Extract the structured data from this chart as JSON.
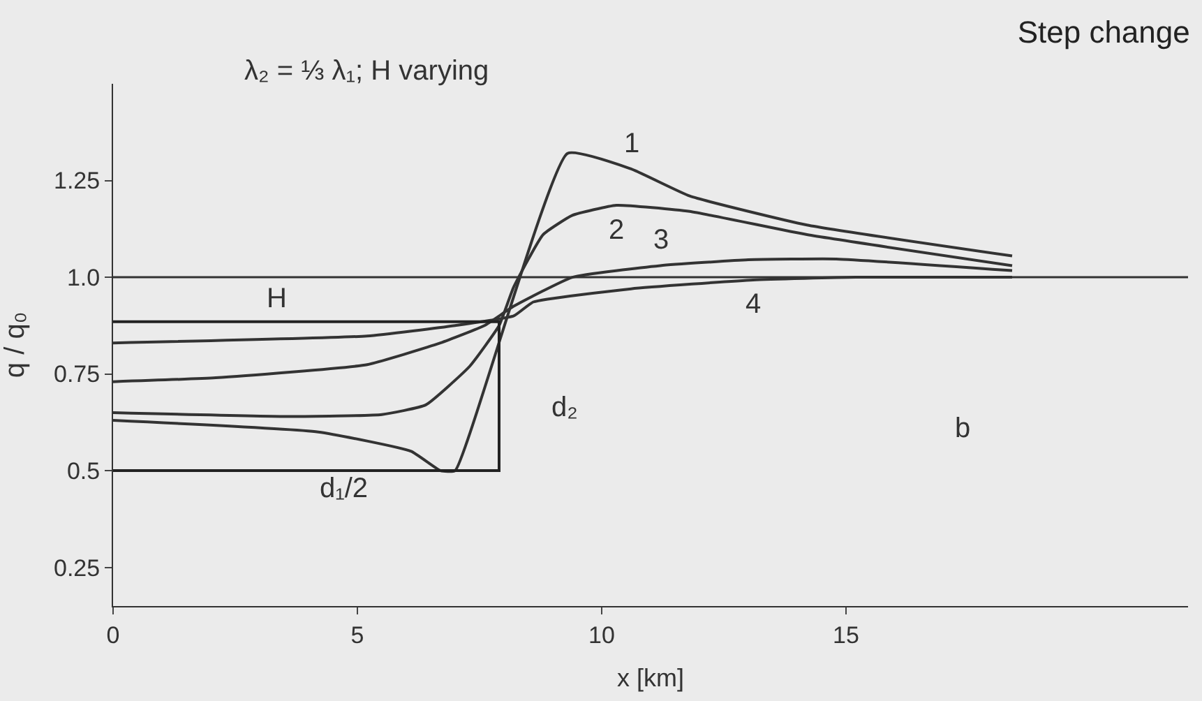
{
  "chart_data": {
    "type": "line",
    "title": "Step change",
    "subtitle": "λ₂ = ⅓ λ₁; H varying",
    "xlabel": "x [km]",
    "ylabel": "q / q₀",
    "xlim": [
      0,
      22
    ],
    "xticks": [
      0,
      5,
      10,
      15
    ],
    "ylim": [
      0.15,
      1.5
    ],
    "yticks": [
      0.25,
      0.5,
      0.75,
      {
        "value": 1,
        "label": "1.0"
      },
      1.25
    ],
    "grid": false,
    "marker": "none",
    "line_style": "solid",
    "series": [
      {
        "name": "1",
        "color": "#333333",
        "x": [
          0,
          4.2,
          6.1,
          6.7,
          7.0,
          9.3,
          10.6,
          11.8,
          14.2,
          18.4
        ],
        "values": [
          0.63,
          0.6,
          0.55,
          0.5,
          0.5,
          1.32,
          1.28,
          1.21,
          1.135,
          1.055
        ]
      },
      {
        "name": "2",
        "color": "#333333",
        "x": [
          0,
          3.6,
          5.5,
          6.4,
          7.3,
          7.9,
          8.2,
          8.8,
          9.4,
          10.3,
          11.8,
          14.2,
          18.4
        ],
        "values": [
          0.65,
          0.64,
          0.645,
          0.67,
          0.77,
          0.875,
          0.975,
          1.11,
          1.16,
          1.186,
          1.17,
          1.11,
          1.03
        ]
      },
      {
        "name": "3",
        "color": "#333333",
        "x": [
          0,
          2.1,
          5.2,
          6.7,
          7.6,
          8.2,
          9.4,
          11.2,
          13,
          14.8,
          18.4
        ],
        "values": [
          0.73,
          0.74,
          0.774,
          0.83,
          0.875,
          0.925,
          1.0,
          1.03,
          1.045,
          1.047,
          1.017
        ]
      },
      {
        "name": "4",
        "color": "#333333",
        "x": [
          0,
          5.2,
          7,
          8.2,
          8.6,
          10.6,
          13.1,
          15.2,
          18.4
        ],
        "values": [
          0.83,
          0.848,
          0.875,
          0.9,
          0.936,
          0.97,
          0.993,
          1.0,
          1.0
        ]
      },
      {
        "color": "#222222",
        "x": [
          0,
          7.9,
          7.9,
          0
        ],
        "values": [
          0.885,
          0.885,
          0.5,
          0.5
        ]
      }
    ],
    "ref_lines": [
      {
        "axis": "y",
        "value": 1,
        "color": "#333333"
      }
    ],
    "annotations": [
      "H",
      "d₂",
      "d₁/2",
      "b"
    ]
  }
}
